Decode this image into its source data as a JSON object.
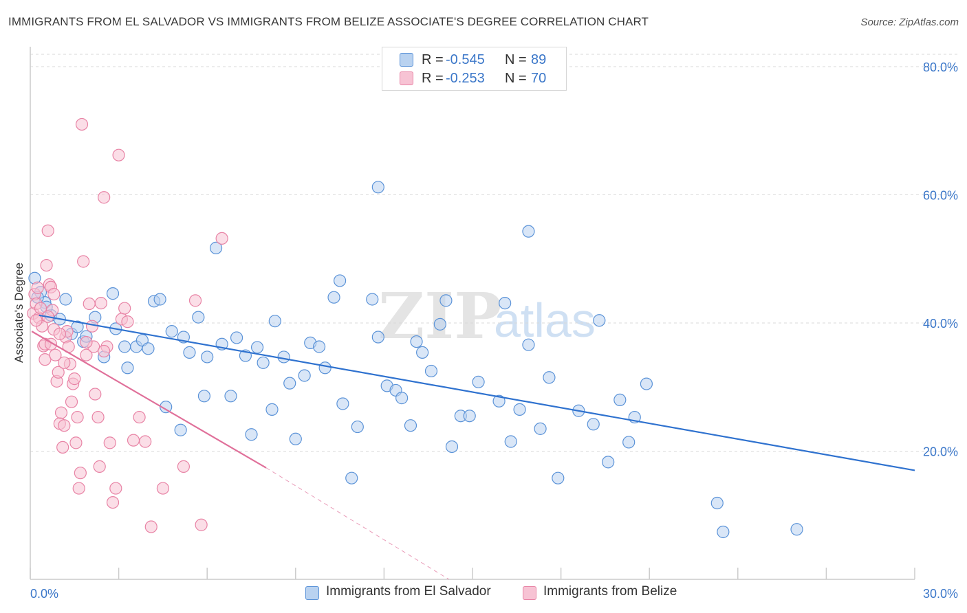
{
  "title": "IMMIGRANTS FROM EL SALVADOR VS IMMIGRANTS FROM BELIZE ASSOCIATE'S DEGREE CORRELATION CHART",
  "source": "Source: ZipAtlas.com",
  "watermark": {
    "zip": "ZIP",
    "atlas": "atlas"
  },
  "colors": {
    "blue": "#5b93d8",
    "blue_fill": "#b9d2f0",
    "blue_line": "#2f72cf",
    "pink": "#e883a5",
    "pink_fill": "#f7c3d4",
    "pink_line": "#e0709a",
    "axis_text": "#3b77c9",
    "grid": "#d9d9d9"
  },
  "legend": {
    "rows": [
      {
        "r_label": "R =",
        "r_value": "-0.545",
        "n_label": "N =",
        "n_value": "89"
      },
      {
        "r_label": "R =",
        "r_value": "-0.253",
        "n_label": "N =",
        "n_value": "70"
      }
    ]
  },
  "bottom_legend": {
    "series1": "Immigrants from El Salvador",
    "series2": "Immigrants from Belize"
  },
  "chart_data": {
    "type": "scatter",
    "title": "IMMIGRANTS FROM EL SALVADOR VS IMMIGRANTS FROM BELIZE ASSOCIATE'S DEGREE CORRELATION CHART",
    "xlabel": "",
    "ylabel": "Associate's Degree",
    "xlim": [
      0,
      30
    ],
    "ylim": [
      0,
      80
    ],
    "x_ticks": [
      "0.0%",
      "30.0%"
    ],
    "y_ticks": [
      "20.0%",
      "40.0%",
      "60.0%",
      "80.0%"
    ],
    "y_tick_values": [
      20,
      40,
      60,
      80
    ],
    "grid": true,
    "legend_position": "top-center",
    "series": [
      {
        "name": "Immigrants from El Salvador",
        "color": "#5b93d8",
        "r": -0.545,
        "n": 89,
        "trend": {
          "x": [
            0.3,
            30.0
          ],
          "y": [
            41.2,
            17.0
          ],
          "dashed_extension": false
        },
        "points": [
          [
            0.15,
            47.0
          ],
          [
            0.35,
            44.8
          ],
          [
            0.5,
            43.2
          ],
          [
            0.7,
            41.2
          ],
          [
            1.0,
            40.6
          ],
          [
            1.2,
            43.7
          ],
          [
            1.4,
            38.3
          ],
          [
            1.6,
            39.4
          ],
          [
            1.8,
            37.1
          ],
          [
            1.9,
            37.9
          ],
          [
            2.2,
            40.9
          ],
          [
            2.5,
            34.7
          ],
          [
            2.8,
            44.6
          ],
          [
            2.9,
            39.1
          ],
          [
            3.2,
            36.3
          ],
          [
            3.3,
            33.0
          ],
          [
            3.6,
            36.3
          ],
          [
            3.8,
            37.3
          ],
          [
            4.0,
            36.0
          ],
          [
            4.2,
            43.4
          ],
          [
            4.4,
            43.7
          ],
          [
            4.6,
            26.9
          ],
          [
            4.8,
            38.7
          ],
          [
            5.1,
            23.3
          ],
          [
            5.2,
            37.8
          ],
          [
            5.4,
            35.4
          ],
          [
            5.7,
            40.9
          ],
          [
            5.9,
            28.6
          ],
          [
            6.0,
            34.7
          ],
          [
            6.3,
            51.7
          ],
          [
            6.5,
            36.7
          ],
          [
            6.8,
            28.6
          ],
          [
            7.0,
            37.7
          ],
          [
            7.3,
            34.9
          ],
          [
            7.5,
            22.6
          ],
          [
            7.7,
            36.2
          ],
          [
            7.9,
            33.8
          ],
          [
            8.2,
            26.5
          ],
          [
            8.3,
            40.3
          ],
          [
            8.6,
            34.7
          ],
          [
            8.8,
            30.6
          ],
          [
            9.0,
            21.9
          ],
          [
            9.3,
            31.8
          ],
          [
            9.5,
            36.9
          ],
          [
            9.8,
            36.3
          ],
          [
            10.0,
            33.0
          ],
          [
            10.3,
            44.0
          ],
          [
            10.5,
            46.6
          ],
          [
            10.6,
            27.4
          ],
          [
            10.9,
            15.8
          ],
          [
            11.1,
            23.8
          ],
          [
            11.6,
            43.7
          ],
          [
            11.8,
            37.8
          ],
          [
            11.8,
            61.2
          ],
          [
            12.1,
            30.2
          ],
          [
            12.4,
            29.5
          ],
          [
            12.6,
            28.3
          ],
          [
            12.9,
            24.0
          ],
          [
            13.1,
            37.1
          ],
          [
            13.3,
            35.4
          ],
          [
            13.6,
            32.5
          ],
          [
            13.9,
            39.8
          ],
          [
            14.1,
            43.5
          ],
          [
            14.3,
            20.7
          ],
          [
            14.6,
            25.5
          ],
          [
            14.9,
            25.5
          ],
          [
            15.2,
            30.8
          ],
          [
            15.9,
            27.8
          ],
          [
            16.1,
            43.1
          ],
          [
            16.3,
            21.5
          ],
          [
            16.6,
            26.5
          ],
          [
            16.9,
            36.6
          ],
          [
            16.9,
            54.3
          ],
          [
            17.3,
            23.5
          ],
          [
            17.6,
            31.5
          ],
          [
            17.9,
            15.8
          ],
          [
            18.6,
            26.3
          ],
          [
            19.1,
            24.2
          ],
          [
            19.3,
            40.4
          ],
          [
            19.6,
            18.3
          ],
          [
            20.0,
            28.0
          ],
          [
            20.3,
            21.4
          ],
          [
            20.5,
            25.3
          ],
          [
            20.9,
            30.5
          ],
          [
            23.3,
            11.9
          ],
          [
            23.5,
            7.4
          ],
          [
            26.0,
            7.8
          ],
          [
            0.25,
            44.0
          ],
          [
            0.55,
            42.5
          ]
        ]
      },
      {
        "name": "Immigrants from Belize",
        "color": "#e883a5",
        "r": -0.253,
        "n": 70,
        "trend": {
          "x": [
            0.05,
            8.0
          ],
          "y": [
            38.7,
            17.4
          ],
          "dashed_extension": true,
          "dashed_to": [
            14.2,
            0.0
          ]
        },
        "points": [
          [
            0.1,
            41.5
          ],
          [
            0.15,
            44.5
          ],
          [
            0.2,
            43.0
          ],
          [
            0.25,
            45.5
          ],
          [
            0.3,
            40.8
          ],
          [
            0.35,
            42.3
          ],
          [
            0.4,
            39.5
          ],
          [
            0.45,
            36.4
          ],
          [
            0.5,
            34.3
          ],
          [
            0.55,
            49.0
          ],
          [
            0.6,
            54.4
          ],
          [
            0.65,
            46.0
          ],
          [
            0.7,
            45.6
          ],
          [
            0.75,
            42.0
          ],
          [
            0.8,
            39.0
          ],
          [
            0.85,
            35.0
          ],
          [
            0.9,
            30.9
          ],
          [
            0.95,
            32.3
          ],
          [
            1.0,
            24.3
          ],
          [
            1.05,
            26.0
          ],
          [
            1.1,
            20.6
          ],
          [
            1.15,
            24.0
          ],
          [
            1.2,
            37.8
          ],
          [
            1.25,
            38.7
          ],
          [
            1.3,
            36.3
          ],
          [
            1.35,
            33.6
          ],
          [
            1.4,
            27.7
          ],
          [
            1.45,
            30.5
          ],
          [
            1.5,
            31.3
          ],
          [
            1.55,
            21.3
          ],
          [
            1.6,
            25.3
          ],
          [
            1.65,
            14.2
          ],
          [
            1.7,
            16.6
          ],
          [
            1.75,
            71.0
          ],
          [
            1.8,
            49.6
          ],
          [
            1.9,
            35.0
          ],
          [
            2.0,
            43.0
          ],
          [
            2.1,
            39.5
          ],
          [
            2.15,
            36.3
          ],
          [
            2.2,
            28.9
          ],
          [
            2.3,
            25.3
          ],
          [
            2.35,
            17.6
          ],
          [
            2.4,
            43.1
          ],
          [
            2.5,
            59.6
          ],
          [
            2.6,
            36.3
          ],
          [
            2.7,
            21.3
          ],
          [
            2.8,
            12.0
          ],
          [
            2.9,
            14.2
          ],
          [
            3.0,
            66.2
          ],
          [
            3.1,
            40.6
          ],
          [
            3.2,
            42.3
          ],
          [
            3.3,
            40.2
          ],
          [
            3.5,
            21.7
          ],
          [
            3.7,
            25.3
          ],
          [
            3.9,
            21.5
          ],
          [
            4.1,
            8.2
          ],
          [
            4.5,
            14.2
          ],
          [
            5.2,
            17.6
          ],
          [
            5.6,
            43.5
          ],
          [
            5.8,
            8.5
          ],
          [
            6.5,
            53.2
          ],
          [
            0.5,
            36.7
          ],
          [
            0.8,
            44.5
          ],
          [
            1.15,
            33.8
          ],
          [
            1.9,
            37.0
          ],
          [
            2.5,
            35.6
          ],
          [
            0.2,
            40.4
          ],
          [
            0.6,
            41.0
          ],
          [
            0.7,
            36.7
          ],
          [
            1.0,
            38.3
          ]
        ]
      }
    ]
  }
}
